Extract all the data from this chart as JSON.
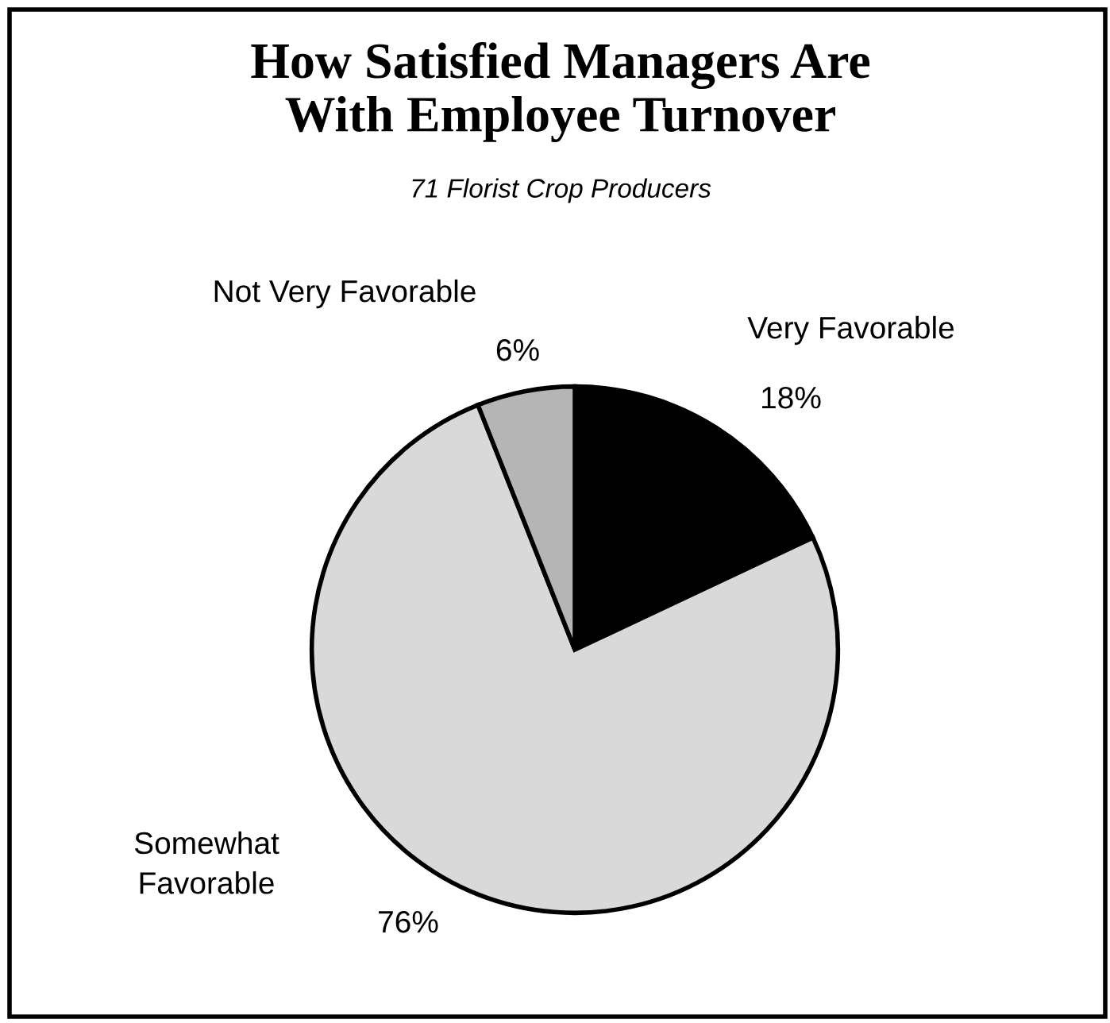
{
  "chart_data": {
    "type": "pie",
    "title": "How Satisfied Managers Are\nWith Employee Turnover",
    "subtitle": "71 Florist Crop Producers",
    "categories": [
      "Very Favorable",
      "Somewhat\nFavorable",
      "Not Very Favorable"
    ],
    "values": [
      18,
      76,
      6
    ],
    "value_labels": [
      "18%",
      "76%",
      "6%"
    ],
    "colors": [
      "#000000",
      "#d9d9d9",
      "#b5b5b5"
    ]
  }
}
